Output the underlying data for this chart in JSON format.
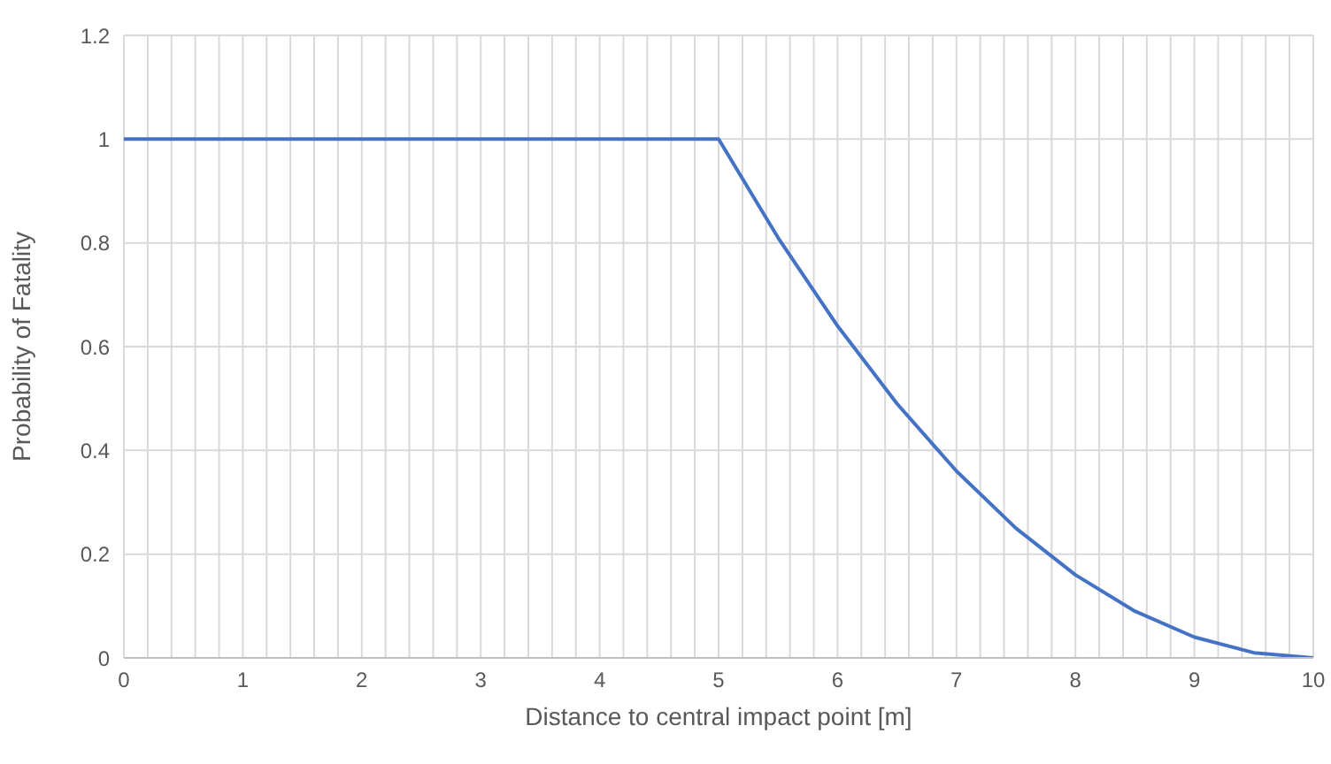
{
  "chart_data": {
    "type": "line",
    "xlabel": "Distance to central impact point [m]",
    "ylabel": "Probability of Fatality",
    "x": [
      0,
      5,
      5.5,
      6,
      6.5,
      7,
      7.5,
      8,
      8.5,
      9,
      9.5,
      10
    ],
    "series": [
      {
        "color": "#4472c4",
        "values": [
          1,
          1,
          0.81,
          0.64,
          0.49,
          0.36,
          0.25,
          0.16,
          0.09,
          0.04,
          0.01,
          0
        ]
      }
    ],
    "xlim": [
      0,
      10
    ],
    "xticks": [
      0,
      {
        "value": 0.2,
        "label": null
      },
      {
        "value": 0.4,
        "label": null
      },
      {
        "value": 0.6,
        "label": null
      },
      {
        "value": 0.8,
        "label": null
      },
      1,
      {
        "value": 1.2,
        "label": null
      },
      {
        "value": 1.4,
        "label": null
      },
      {
        "value": 1.6,
        "label": null
      },
      {
        "value": 1.8,
        "label": null
      },
      2,
      {
        "value": 2.2,
        "label": null
      },
      {
        "value": 2.4,
        "label": null
      },
      {
        "value": 2.6,
        "label": null
      },
      {
        "value": 2.8,
        "label": null
      },
      3,
      {
        "value": 3.2,
        "label": null
      },
      {
        "value": 3.4,
        "label": null
      },
      {
        "value": 3.6,
        "label": null
      },
      {
        "value": 3.8,
        "label": null
      },
      4,
      {
        "value": 4.2,
        "label": null
      },
      {
        "value": 4.4,
        "label": null
      },
      {
        "value": 4.6,
        "label": null
      },
      {
        "value": 4.8,
        "label": null
      },
      5,
      {
        "value": 5.2,
        "label": null
      },
      {
        "value": 5.4,
        "label": null
      },
      {
        "value": 5.6,
        "label": null
      },
      {
        "value": 5.8,
        "label": null
      },
      6,
      {
        "value": 6.2,
        "label": null
      },
      {
        "value": 6.4,
        "label": null
      },
      {
        "value": 6.6,
        "label": null
      },
      {
        "value": 6.8,
        "label": null
      },
      7,
      {
        "value": 7.2,
        "label": null
      },
      {
        "value": 7.4,
        "label": null
      },
      {
        "value": 7.6,
        "label": null
      },
      {
        "value": 7.8,
        "label": null
      },
      8,
      {
        "value": 8.2,
        "label": null
      },
      {
        "value": 8.4,
        "label": null
      },
      {
        "value": 8.6,
        "label": null
      },
      {
        "value": 8.8,
        "label": null
      },
      9,
      {
        "value": 9.2,
        "label": null
      },
      {
        "value": 9.4,
        "label": null
      },
      {
        "value": 9.6,
        "label": null
      },
      {
        "value": 9.8,
        "label": null
      },
      10
    ],
    "ylim": [
      0,
      1.2
    ],
    "yticks": [
      0,
      0.2,
      0.4,
      0.6,
      0.8,
      1,
      1.2
    ],
    "grid": true,
    "marker": "none",
    "line_style": "solid"
  }
}
